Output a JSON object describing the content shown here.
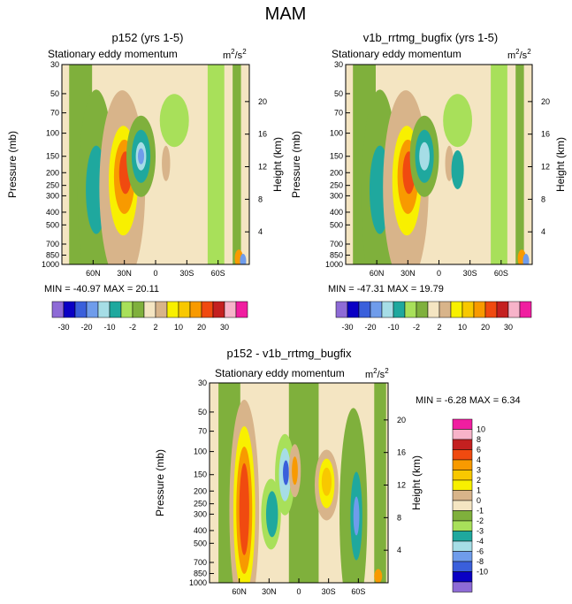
{
  "title": "MAM",
  "color_scale": {
    "model_colors": [
      "#8E6BD6",
      "#0A00C4",
      "#3A5FDB",
      "#6F9CEB",
      "#A6DDE6",
      "#1FA89E",
      "#A8E05A",
      "#7FB03C",
      "#F4E5C2",
      "#D8B48A",
      "#F8F000",
      "#F8C800",
      "#F89A00",
      "#F04A10",
      "#C42020",
      "#F7B3C9",
      "#F01EA0"
    ],
    "model_labels": [
      "-30",
      "-20",
      "-10",
      "-2",
      "2",
      "10",
      "20",
      "30"
    ],
    "diff_colors": [
      "#8E6BD6",
      "#0A00C4",
      "#3A5FDB",
      "#6F9CEB",
      "#A6DDE6",
      "#1FA89E",
      "#A8E05A",
      "#7FB03C",
      "#F4E5C2",
      "#D8B48A",
      "#F8F000",
      "#F8C800",
      "#F89A00",
      "#F04A10",
      "#C42020",
      "#F7B3C9",
      "#F01EA0"
    ],
    "diff_labels": [
      "10",
      "8",
      "6",
      "4",
      "3",
      "2",
      "1",
      "0",
      "-1",
      "-2",
      "-3",
      "-4",
      "-6",
      "-8",
      "-10"
    ]
  },
  "chart_data": [
    {
      "type": "heatmap",
      "id": "p152",
      "title": "p152 (yrs 1-5)",
      "subtitle": "Stationary eddy momentum",
      "units_base": "m",
      "units_sup1": "2",
      "units_mid": "/s",
      "units_sup2": "2",
      "ylabel": "Pressure (mb)",
      "ylabel_right": "Height (km)",
      "xticks": [
        "60N",
        "30N",
        "0",
        "30S",
        "60S"
      ],
      "xtick_values": [
        60,
        30,
        0,
        -30,
        -60
      ],
      "xlim": [
        90,
        -90
      ],
      "yticks": [
        "30",
        "50",
        "70",
        "100",
        "150",
        "200",
        "250",
        "300",
        "400",
        "500",
        "700",
        "850",
        "1000"
      ],
      "ytick_values": [
        30,
        50,
        70,
        100,
        150,
        200,
        250,
        300,
        400,
        500,
        700,
        850,
        1000
      ],
      "ylim": [
        30,
        1000
      ],
      "height_ticks": [
        "20",
        "16",
        "12",
        "8",
        "4"
      ],
      "height_values": [
        20,
        16,
        12,
        8,
        4
      ],
      "min_label": "MIN = -40.97  MAX =  20.11",
      "stats": {
        "min": -40.97,
        "max": 20.11
      },
      "features": [
        {
          "kind": "positive",
          "lat": 30,
          "p": 200,
          "peak": 20.11,
          "note": "max near 30N upper troposphere"
        },
        {
          "kind": "negative",
          "lat": 15,
          "p": 150,
          "peak": -40.97,
          "note": "min near 15N"
        },
        {
          "kind": "negative",
          "lat": 57,
          "p": 270,
          "peak": -10,
          "note": "negative core at 60N"
        }
      ]
    },
    {
      "type": "heatmap",
      "id": "v1b",
      "title": "v1b_rrtmg_bugfix (yrs 1-5)",
      "subtitle": "Stationary eddy momentum",
      "units_base": "m",
      "units_sup1": "2",
      "units_mid": "/s",
      "units_sup2": "2",
      "ylabel": "Pressure (mb)",
      "ylabel_right": "Height (km)",
      "xticks": [
        "60N",
        "30N",
        "0",
        "30S",
        "60S"
      ],
      "xtick_values": [
        60,
        30,
        0,
        -30,
        -60
      ],
      "xlim": [
        90,
        -90
      ],
      "yticks": [
        "30",
        "50",
        "70",
        "100",
        "150",
        "200",
        "250",
        "300",
        "400",
        "500",
        "700",
        "850",
        "1000"
      ],
      "ytick_values": [
        30,
        50,
        70,
        100,
        150,
        200,
        250,
        300,
        400,
        500,
        700,
        850,
        1000
      ],
      "ylim": [
        30,
        1000
      ],
      "height_ticks": [
        "20",
        "16",
        "12",
        "8",
        "4"
      ],
      "height_values": [
        20,
        16,
        12,
        8,
        4
      ],
      "min_label": "MIN = -47.31  MAX =  19.79",
      "stats": {
        "min": -47.31,
        "max": 19.79
      },
      "features": [
        {
          "kind": "positive",
          "lat": 30,
          "p": 200,
          "peak": 19.79
        },
        {
          "kind": "negative",
          "lat": 15,
          "p": 150,
          "peak": -47.31
        },
        {
          "kind": "negative",
          "lat": 57,
          "p": 270,
          "peak": -10
        }
      ]
    },
    {
      "type": "heatmap",
      "id": "diff",
      "title": "p152 - v1b_rrtmg_bugfix",
      "subtitle": "Stationary eddy momentum",
      "units_base": "m",
      "units_sup1": "2",
      "units_mid": "/s",
      "units_sup2": "2",
      "ylabel": "Pressure (mb)",
      "ylabel_right": "Height (km)",
      "xticks": [
        "60N",
        "30N",
        "0",
        "30S",
        "60S"
      ],
      "xtick_values": [
        60,
        30,
        0,
        -30,
        -60
      ],
      "xlim": [
        90,
        -90
      ],
      "yticks": [
        "30",
        "50",
        "70",
        "100",
        "150",
        "200",
        "250",
        "300",
        "400",
        "500",
        "700",
        "850",
        "1000"
      ],
      "ytick_values": [
        30,
        50,
        70,
        100,
        150,
        200,
        250,
        300,
        400,
        500,
        700,
        850,
        1000
      ],
      "ylim": [
        30,
        1000
      ],
      "height_ticks": [
        "20",
        "16",
        "12",
        "8",
        "4"
      ],
      "height_values": [
        20,
        16,
        12,
        8,
        4
      ],
      "min_label": "MIN =  -6.28  MAX =   6.34",
      "stats": {
        "min": -6.28,
        "max": 6.34
      },
      "features": [
        {
          "kind": "positive",
          "lat": 55,
          "p": 270,
          "peak": 6.34
        },
        {
          "kind": "negative",
          "lat": 13,
          "p": 150,
          "peak": -6.28
        },
        {
          "kind": "positive",
          "lat": -28,
          "p": 180,
          "peak": 3
        },
        {
          "kind": "negative",
          "lat": -58,
          "p": 300,
          "peak": -4
        }
      ]
    }
  ]
}
